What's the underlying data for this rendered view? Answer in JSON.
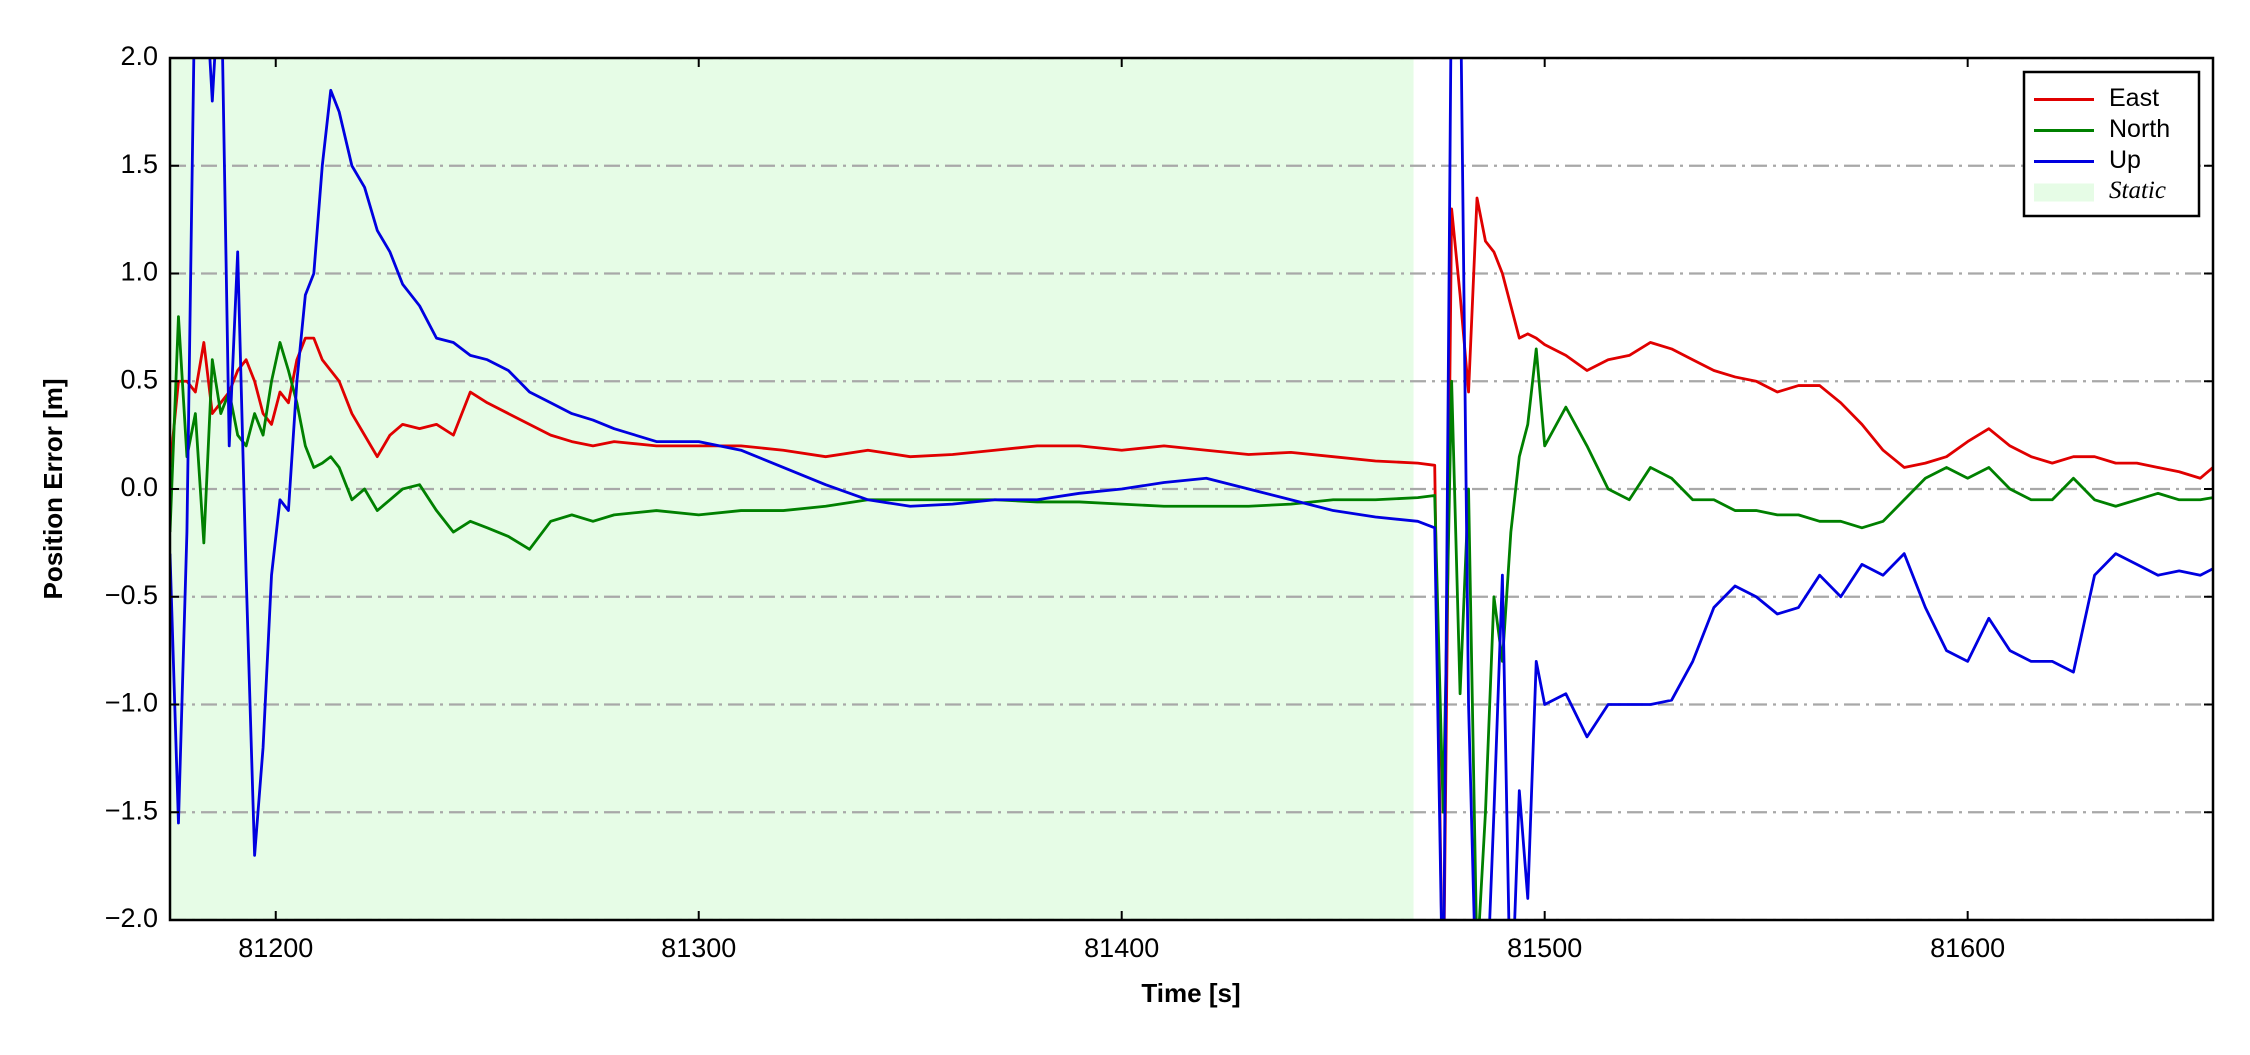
{
  "chart_data": {
    "type": "line",
    "xlabel": "Time [s]",
    "ylabel": "Position Error [m]",
    "xlim": [
      81175,
      81658
    ],
    "ylim": [
      -2,
      2
    ],
    "xticks": [
      81200,
      81300,
      81400,
      81500,
      81600
    ],
    "yticks": [
      {
        "value": -2,
        "label": "−2.0"
      },
      {
        "value": -1.5,
        "label": "−1.5"
      },
      {
        "value": -1,
        "label": "−1.0"
      },
      {
        "value": -0.5,
        "label": "−0.5"
      },
      {
        "value": 0,
        "label": "0.0"
      },
      0.5,
      {
        "value": 1,
        "label": "1.0"
      },
      1.5,
      {
        "value": 2,
        "label": "2.0"
      }
    ],
    "grid": true,
    "legend": "upper right",
    "shaded_region": {
      "name": "Static",
      "x": [
        81175,
        81469
      ],
      "color": "#e6fce6"
    },
    "x": [
      81175,
      81177,
      81179,
      81181,
      81183,
      81185,
      81187,
      81189,
      81191,
      81193,
      81195,
      81197,
      81199,
      81201,
      81203,
      81205,
      81207,
      81209,
      81211,
      81213,
      81215,
      81218,
      81221,
      81224,
      81227,
      81230,
      81234,
      81238,
      81242,
      81246,
      81250,
      81255,
      81260,
      81265,
      81270,
      81275,
      81280,
      81290,
      81300,
      81310,
      81320,
      81330,
      81340,
      81350,
      81360,
      81370,
      81380,
      81390,
      81400,
      81410,
      81420,
      81430,
      81440,
      81450,
      81460,
      81470,
      81474,
      81476,
      81478,
      81480,
      81482,
      81484,
      81486,
      81488,
      81490,
      81492,
      81494,
      81496,
      81498,
      81500,
      81505,
      81510,
      81515,
      81520,
      81525,
      81530,
      81535,
      81540,
      81545,
      81550,
      81555,
      81560,
      81565,
      81570,
      81575,
      81580,
      81585,
      81590,
      81595,
      81600,
      81605,
      81610,
      81615,
      81620,
      81625,
      81630,
      81635,
      81640,
      81645,
      81650,
      81655,
      81658
    ],
    "series": [
      {
        "name": "East",
        "color": "#e00000",
        "values": [
          0.1,
          0.5,
          0.5,
          0.45,
          0.68,
          0.35,
          0.4,
          0.45,
          0.55,
          0.6,
          0.5,
          0.35,
          0.3,
          0.45,
          0.4,
          0.6,
          0.7,
          0.7,
          0.6,
          0.55,
          0.5,
          0.35,
          0.25,
          0.15,
          0.25,
          0.3,
          0.28,
          0.3,
          0.25,
          0.45,
          0.4,
          0.35,
          0.3,
          0.25,
          0.22,
          0.2,
          0.22,
          0.2,
          0.2,
          0.2,
          0.18,
          0.15,
          0.18,
          0.15,
          0.16,
          0.18,
          0.2,
          0.2,
          0.18,
          0.2,
          0.18,
          0.16,
          0.17,
          0.15,
          0.13,
          0.12,
          0.11,
          -2.5,
          1.3,
          0.9,
          0.45,
          1.35,
          1.15,
          1.1,
          1.0,
          0.85,
          0.7,
          0.72,
          0.7,
          0.67,
          0.62,
          0.55,
          0.6,
          0.62,
          0.68,
          0.65,
          0.6,
          0.55,
          0.52,
          0.5,
          0.45,
          0.48,
          0.48,
          0.4,
          0.3,
          0.18,
          0.1,
          0.12,
          0.15,
          0.22,
          0.28,
          0.2,
          0.15,
          0.12,
          0.15,
          0.15,
          0.12,
          0.12,
          0.1,
          0.08,
          0.05,
          0.1
        ]
      },
      {
        "name": "North",
        "color": "#008000",
        "values": [
          -0.2,
          0.8,
          0.15,
          0.35,
          -0.25,
          0.6,
          0.35,
          0.45,
          0.25,
          0.2,
          0.35,
          0.25,
          0.5,
          0.68,
          0.55,
          0.4,
          0.2,
          0.1,
          0.12,
          0.15,
          0.1,
          -0.05,
          0.0,
          -0.1,
          -0.05,
          0.0,
          0.02,
          -0.1,
          -0.2,
          -0.15,
          -0.18,
          -0.22,
          -0.28,
          -0.15,
          -0.12,
          -0.15,
          -0.12,
          -0.1,
          -0.12,
          -0.1,
          -0.1,
          -0.08,
          -0.05,
          -0.05,
          -0.05,
          -0.05,
          -0.06,
          -0.06,
          -0.07,
          -0.08,
          -0.08,
          -0.08,
          -0.07,
          -0.05,
          -0.05,
          -0.04,
          -0.03,
          -1.5,
          0.5,
          -0.95,
          0.0,
          -2.2,
          -1.5,
          -0.5,
          -0.8,
          -0.2,
          0.15,
          0.3,
          0.65,
          0.2,
          0.38,
          0.2,
          0.0,
          -0.05,
          0.1,
          0.05,
          -0.05,
          -0.05,
          -0.1,
          -0.1,
          -0.12,
          -0.12,
          -0.15,
          -0.15,
          -0.18,
          -0.15,
          -0.05,
          0.05,
          0.1,
          0.05,
          0.1,
          0.0,
          -0.05,
          -0.05,
          0.05,
          -0.05,
          -0.08,
          -0.05,
          -0.02,
          -0.05,
          -0.05,
          -0.04
        ]
      },
      {
        "name": "Up",
        "color": "#0000e0",
        "values": [
          -0.3,
          -1.55,
          -0.2,
          2.5,
          2.5,
          1.8,
          2.5,
          0.2,
          1.1,
          -0.4,
          -1.7,
          -1.2,
          -0.4,
          -0.05,
          -0.1,
          0.5,
          0.9,
          1.0,
          1.5,
          1.85,
          1.75,
          1.5,
          1.4,
          1.2,
          1.1,
          0.95,
          0.85,
          0.7,
          0.68,
          0.62,
          0.6,
          0.55,
          0.45,
          0.4,
          0.35,
          0.32,
          0.28,
          0.22,
          0.22,
          0.18,
          0.1,
          0.02,
          -0.05,
          -0.08,
          -0.07,
          -0.05,
          -0.05,
          -0.02,
          0.0,
          0.03,
          0.05,
          0.0,
          -0.05,
          -0.1,
          -0.13,
          -0.15,
          -0.18,
          -2.5,
          2.5,
          2.5,
          -1.0,
          -2.5,
          -2.5,
          -1.5,
          -0.4,
          -2.5,
          -1.4,
          -1.9,
          -0.8,
          -1.0,
          -0.95,
          -1.15,
          -1.0,
          -1.0,
          -1.0,
          -0.98,
          -0.8,
          -0.55,
          -0.45,
          -0.5,
          -0.58,
          -0.55,
          -0.4,
          -0.5,
          -0.35,
          -0.4,
          -0.3,
          -0.55,
          -0.75,
          -0.8,
          -0.6,
          -0.75,
          -0.8,
          -0.8,
          -0.85,
          -0.4,
          -0.3,
          -0.35,
          -0.4,
          -0.38,
          -0.4,
          -0.37
        ]
      }
    ]
  }
}
